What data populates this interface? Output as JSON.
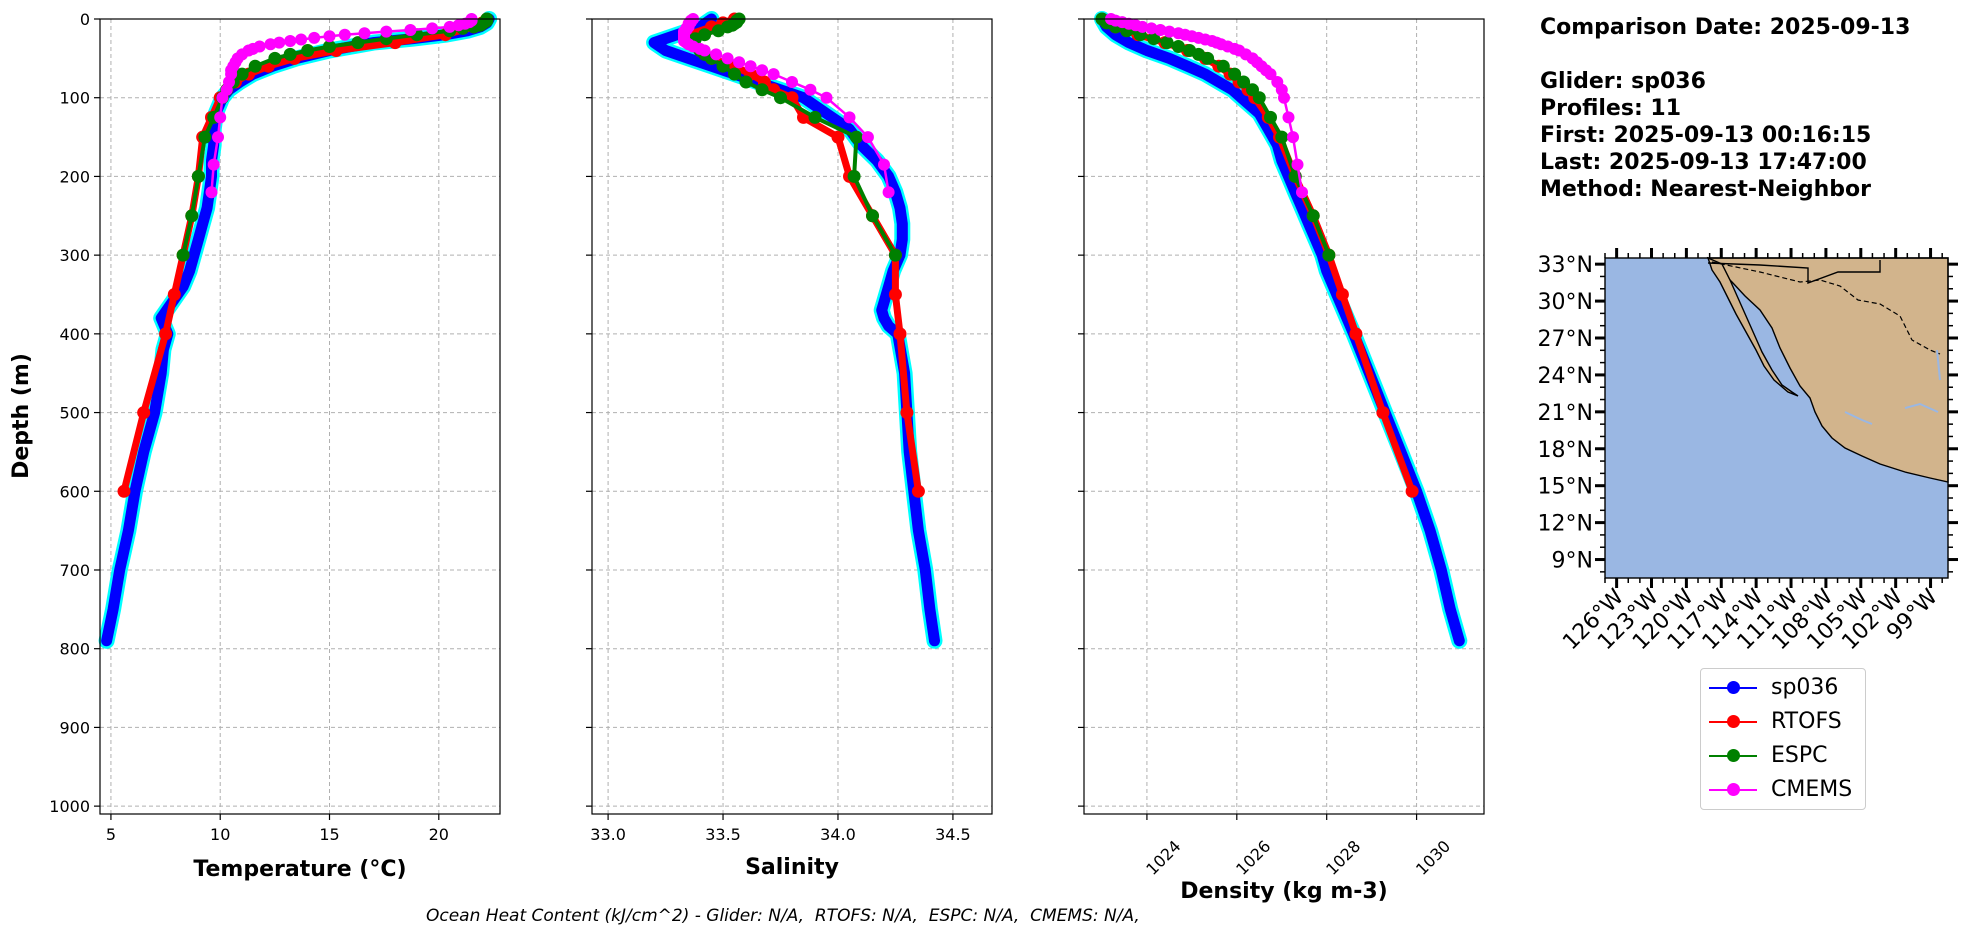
{
  "info": {
    "date_line": "Comparison Date: 2025-09-13",
    "glider_line": "Glider: sp036",
    "profiles_line": "Profiles: 11",
    "first_line": "First: 2025-09-13 00:16:15",
    "last_line": "Last: 2025-09-13 17:47:00",
    "method_line": "Method: Nearest-Neighbor"
  },
  "footer": "Ocean Heat Content (kJ/cm^2) - Glider: N/A,  RTOFS: N/A,  ESPC: N/A,  CMEMS: N/A,",
  "legend": [
    {
      "name": "sp036",
      "color": "#0000ff"
    },
    {
      "name": "RTOFS",
      "color": "#ff0000"
    },
    {
      "name": "ESPC",
      "color": "#008000"
    },
    {
      "name": "CMEMS",
      "color": "#ff00ff"
    }
  ],
  "colors": {
    "glider": "#0000ff",
    "glider_range": "#00ffff",
    "rtofs": "#ff0000",
    "espc": "#008000",
    "cmems": "#ff00ff",
    "ocean": "#9ab7e3",
    "land": "#d2b48c"
  },
  "chart_data": [
    {
      "type": "line",
      "xlabel": "Temperature (°C)",
      "ylabel": "Depth (m)",
      "xlim": [
        4.5,
        22.8
      ],
      "ylim": [
        1010,
        0
      ],
      "xticks": [
        5,
        10,
        15,
        20
      ],
      "yticks": [
        0,
        100,
        200,
        300,
        400,
        500,
        600,
        700,
        800,
        900,
        1000
      ],
      "grid": true,
      "series": [
        {
          "name": "sp036",
          "depth": [
            0,
            5,
            10,
            15,
            20,
            25,
            30,
            40,
            50,
            60,
            70,
            80,
            90,
            100,
            120,
            140,
            160,
            180,
            200,
            220,
            240,
            260,
            280,
            300,
            320,
            340,
            360,
            380,
            400,
            420,
            450,
            500,
            550,
            600,
            650,
            700,
            750,
            790
          ],
          "values": [
            22.3,
            22.2,
            21.9,
            21.3,
            20.3,
            18.8,
            17.0,
            15.0,
            13.5,
            12.4,
            11.5,
            10.9,
            10.4,
            10.1,
            9.8,
            9.7,
            9.7,
            9.6,
            9.6,
            9.5,
            9.4,
            9.2,
            9.0,
            8.8,
            8.6,
            8.3,
            7.8,
            7.3,
            7.6,
            7.4,
            7.3,
            7.0,
            6.5,
            6.1,
            5.8,
            5.4,
            5.1,
            4.8
          ]
        },
        {
          "name": "RTOFS",
          "depth": [
            0,
            5,
            10,
            20,
            30,
            40,
            50,
            60,
            70,
            80,
            90,
            100,
            125,
            150,
            200,
            250,
            300,
            350,
            400,
            500,
            600
          ],
          "values": [
            22.2,
            22.0,
            21.6,
            20.3,
            18.0,
            15.3,
            13.4,
            12.2,
            11.3,
            10.7,
            10.3,
            10.0,
            9.6,
            9.2,
            9.0,
            8.7,
            8.3,
            7.9,
            7.5,
            6.5,
            5.6
          ]
        },
        {
          "name": "ESPC",
          "depth": [
            0,
            2,
            4,
            6,
            8,
            10,
            12,
            15,
            20,
            25,
            30,
            35,
            40,
            45,
            50,
            60,
            70,
            80,
            90,
            100,
            125,
            150,
            200,
            250,
            300
          ],
          "values": [
            22.2,
            22.2,
            22.1,
            22.0,
            21.9,
            21.6,
            21.1,
            20.5,
            19.0,
            17.6,
            16.3,
            15.0,
            14.0,
            13.2,
            12.5,
            11.6,
            11.0,
            10.6,
            10.3,
            10.1,
            9.7,
            9.3,
            9.0,
            8.7,
            8.3
          ]
        },
        {
          "name": "CMEMS",
          "depth": [
            0,
            2,
            4,
            6,
            8,
            10,
            12,
            14,
            16,
            18,
            20,
            22,
            24,
            26,
            28,
            30,
            32,
            35,
            38,
            40,
            45,
            50,
            55,
            60,
            65,
            70,
            80,
            90,
            100,
            125,
            150,
            185,
            220
          ],
          "values": [
            21.5,
            21.5,
            21.4,
            21.2,
            20.9,
            20.5,
            19.7,
            18.7,
            17.6,
            16.6,
            15.7,
            15.0,
            14.3,
            13.7,
            13.2,
            12.7,
            12.3,
            11.8,
            11.5,
            11.3,
            11.0,
            10.8,
            10.7,
            10.6,
            10.5,
            10.5,
            10.4,
            10.3,
            10.1,
            10.0,
            9.9,
            9.7,
            9.6
          ]
        }
      ]
    },
    {
      "type": "line",
      "xlabel": "Salinity",
      "xlim": [
        32.93,
        34.67
      ],
      "ylim": [
        1010,
        0
      ],
      "xticks": [
        33.0,
        33.5,
        34.0,
        34.5
      ],
      "grid": true,
      "series": [
        {
          "name": "sp036",
          "depth": [
            0,
            10,
            20,
            30,
            40,
            50,
            60,
            70,
            80,
            90,
            100,
            120,
            140,
            160,
            180,
            200,
            220,
            240,
            260,
            280,
            300,
            320,
            340,
            360,
            370,
            380,
            390,
            400,
            450,
            500,
            550,
            600,
            650,
            700,
            750,
            790
          ],
          "values": [
            33.45,
            33.4,
            33.3,
            33.2,
            33.25,
            33.35,
            33.45,
            33.55,
            33.65,
            33.75,
            33.85,
            33.95,
            34.05,
            34.1,
            34.17,
            34.22,
            34.25,
            34.27,
            34.28,
            34.28,
            34.27,
            34.24,
            34.22,
            34.2,
            34.19,
            34.2,
            34.22,
            34.26,
            34.29,
            34.3,
            34.31,
            34.33,
            34.35,
            34.38,
            34.4,
            34.42
          ]
        },
        {
          "name": "RTOFS",
          "depth": [
            0,
            5,
            10,
            20,
            30,
            40,
            50,
            60,
            70,
            80,
            90,
            100,
            125,
            150,
            200,
            250,
            300,
            350,
            400,
            500,
            600
          ],
          "values": [
            33.55,
            33.5,
            33.45,
            33.35,
            33.35,
            33.4,
            33.45,
            33.55,
            33.62,
            33.68,
            33.72,
            33.8,
            33.85,
            34.0,
            34.05,
            34.15,
            34.25,
            34.25,
            34.27,
            34.3,
            34.35
          ]
        },
        {
          "name": "ESPC",
          "depth": [
            0,
            2,
            4,
            6,
            8,
            10,
            15,
            20,
            25,
            30,
            35,
            40,
            45,
            50,
            60,
            70,
            80,
            90,
            100,
            125,
            150,
            200,
            250,
            300
          ],
          "values": [
            33.57,
            33.56,
            33.56,
            33.55,
            33.54,
            33.52,
            33.48,
            33.42,
            33.38,
            33.37,
            33.38,
            33.4,
            33.42,
            33.45,
            33.5,
            33.55,
            33.6,
            33.67,
            33.75,
            33.9,
            34.08,
            34.07,
            34.15,
            34.25
          ]
        },
        {
          "name": "CMEMS",
          "depth": [
            0,
            2,
            4,
            6,
            8,
            10,
            12,
            14,
            16,
            18,
            20,
            22,
            24,
            26,
            28,
            30,
            32,
            35,
            38,
            40,
            45,
            50,
            55,
            60,
            65,
            70,
            80,
            90,
            100,
            125,
            150,
            185,
            220
          ],
          "values": [
            33.37,
            33.36,
            33.36,
            33.35,
            33.35,
            33.35,
            33.34,
            33.34,
            33.33,
            33.33,
            33.33,
            33.33,
            33.33,
            33.33,
            33.33,
            33.34,
            33.35,
            33.37,
            33.4,
            33.42,
            33.47,
            33.52,
            33.57,
            33.62,
            33.67,
            33.72,
            33.8,
            33.88,
            33.95,
            34.05,
            34.13,
            34.2,
            34.22
          ]
        }
      ]
    },
    {
      "type": "line",
      "xlabel": "Density (kg m-3)",
      "xlim": [
        1022.6,
        1031.5
      ],
      "ylim": [
        1010,
        0
      ],
      "xticks": [
        1024,
        1026,
        1028,
        1030
      ],
      "grid": true,
      "series": [
        {
          "name": "sp036",
          "depth": [
            0,
            10,
            20,
            30,
            40,
            50,
            60,
            70,
            80,
            90,
            100,
            120,
            140,
            160,
            180,
            200,
            220,
            240,
            260,
            280,
            300,
            320,
            340,
            360,
            380,
            400,
            450,
            500,
            550,
            600,
            650,
            700,
            750,
            790
          ],
          "values": [
            1023.0,
            1023.1,
            1023.3,
            1023.6,
            1024.0,
            1024.5,
            1024.9,
            1025.3,
            1025.6,
            1025.9,
            1026.1,
            1026.5,
            1026.7,
            1026.9,
            1027.0,
            1027.15,
            1027.3,
            1027.45,
            1027.6,
            1027.75,
            1027.9,
            1028.0,
            1028.15,
            1028.3,
            1028.45,
            1028.6,
            1028.95,
            1029.3,
            1029.65,
            1030.0,
            1030.3,
            1030.55,
            1030.75,
            1030.95
          ]
        },
        {
          "name": "RTOFS",
          "depth": [
            0,
            10,
            20,
            30,
            40,
            50,
            60,
            70,
            80,
            90,
            100,
            125,
            150,
            200,
            250,
            300,
            350,
            400,
            500,
            600
          ],
          "values": [
            1023.0,
            1023.3,
            1023.8,
            1024.4,
            1024.9,
            1025.3,
            1025.6,
            1025.85,
            1026.05,
            1026.25,
            1026.4,
            1026.7,
            1026.95,
            1027.3,
            1027.7,
            1028.05,
            1028.35,
            1028.65,
            1029.25,
            1029.9
          ]
        },
        {
          "name": "ESPC",
          "depth": [
            0,
            5,
            10,
            15,
            20,
            25,
            30,
            35,
            40,
            45,
            50,
            60,
            70,
            80,
            90,
            100,
            125,
            150,
            200,
            250,
            300
          ],
          "values": [
            1023.0,
            1023.1,
            1023.3,
            1023.55,
            1023.85,
            1024.15,
            1024.45,
            1024.7,
            1024.95,
            1025.15,
            1025.35,
            1025.7,
            1025.95,
            1026.15,
            1026.35,
            1026.5,
            1026.75,
            1027.0,
            1027.3,
            1027.7,
            1028.05
          ]
        },
        {
          "name": "CMEMS",
          "depth": [
            0,
            2,
            4,
            6,
            8,
            10,
            12,
            14,
            16,
            18,
            20,
            22,
            24,
            26,
            28,
            30,
            32,
            35,
            38,
            40,
            45,
            50,
            55,
            60,
            65,
            70,
            80,
            90,
            100,
            125,
            150,
            185,
            220
          ],
          "values": [
            1023.2,
            1023.3,
            1023.45,
            1023.6,
            1023.75,
            1023.9,
            1024.1,
            1024.3,
            1024.5,
            1024.7,
            1024.85,
            1025.0,
            1025.15,
            1025.3,
            1025.45,
            1025.55,
            1025.65,
            1025.8,
            1025.95,
            1026.05,
            1026.2,
            1026.35,
            1026.45,
            1026.55,
            1026.65,
            1026.75,
            1026.9,
            1027.0,
            1027.05,
            1027.15,
            1027.25,
            1027.35,
            1027.45
          ]
        }
      ]
    },
    {
      "type": "map",
      "lon_range": [
        -127,
        -97.5
      ],
      "lat_range": [
        7.5,
        33.5
      ],
      "lat_ticks": [
        "33°N",
        "30°N",
        "27°N",
        "24°N",
        "21°N",
        "18°N",
        "15°N",
        "12°N",
        "9°N"
      ],
      "lon_ticks": [
        "126°W",
        "123°W",
        "120°W",
        "117°W",
        "114°W",
        "111°W",
        "108°W",
        "105°W",
        "102°W",
        "99°W"
      ]
    }
  ]
}
